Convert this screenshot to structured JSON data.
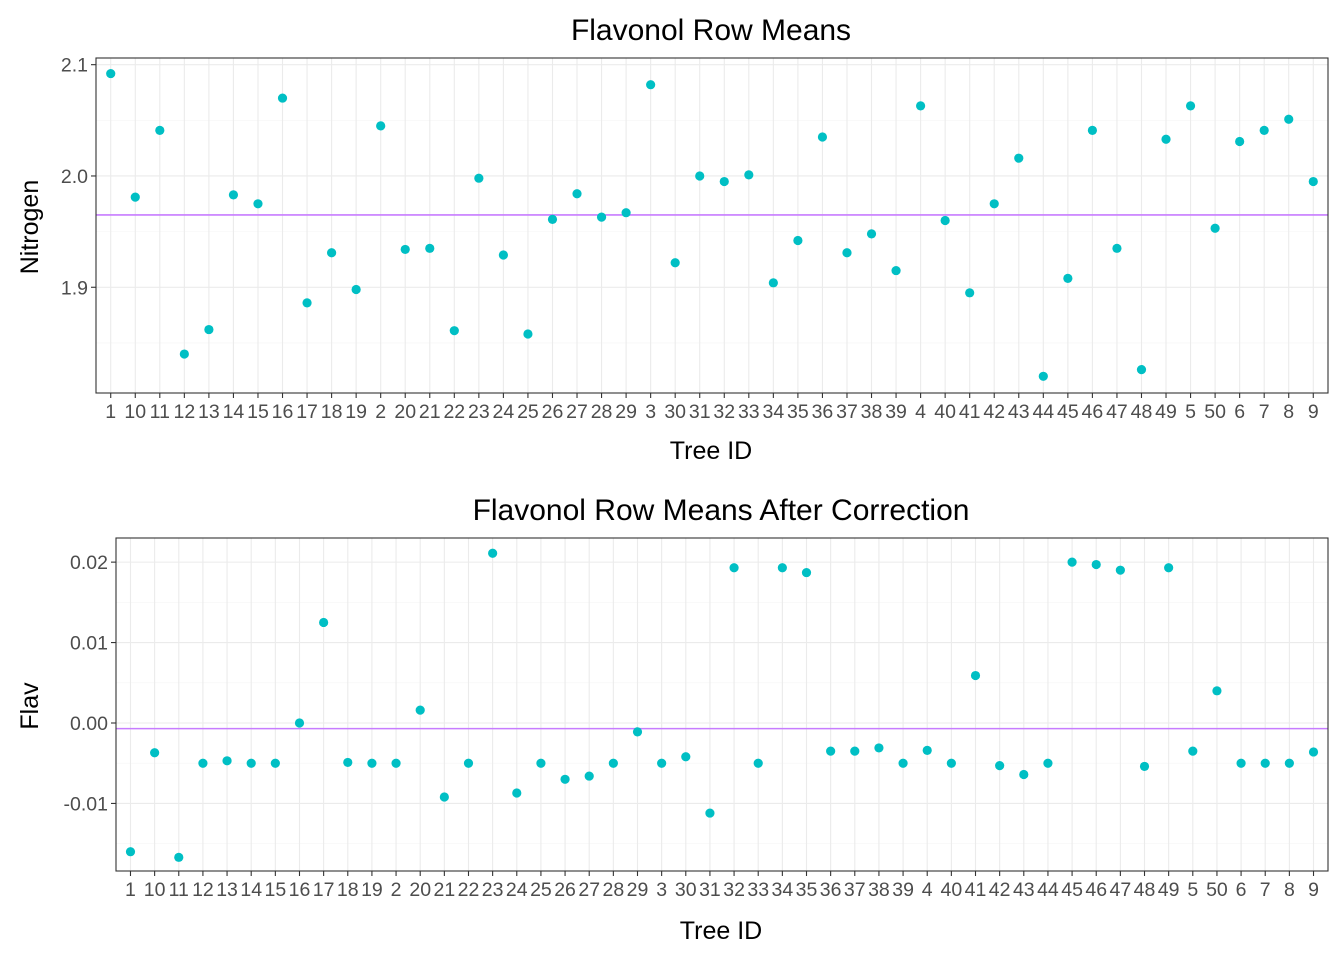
{
  "chart_data": [
    {
      "type": "scatter",
      "title": "Flavonol Row Means",
      "xlabel": "Tree ID",
      "ylabel": "Nitrogen",
      "categories": [
        "1",
        "10",
        "11",
        "12",
        "13",
        "14",
        "15",
        "16",
        "17",
        "18",
        "19",
        "2",
        "20",
        "21",
        "22",
        "23",
        "24",
        "25",
        "26",
        "27",
        "28",
        "29",
        "3",
        "30",
        "31",
        "32",
        "33",
        "34",
        "35",
        "36",
        "37",
        "38",
        "39",
        "4",
        "40",
        "41",
        "42",
        "43",
        "44",
        "45",
        "46",
        "47",
        "48",
        "49",
        "5",
        "50",
        "6",
        "7",
        "8",
        "9"
      ],
      "values": [
        2.092,
        1.981,
        2.041,
        1.84,
        1.862,
        1.983,
        1.975,
        2.07,
        1.886,
        1.931,
        1.898,
        2.045,
        1.934,
        1.935,
        1.861,
        1.998,
        1.929,
        1.858,
        1.961,
        1.984,
        1.963,
        1.967,
        2.082,
        1.922,
        2.0,
        1.995,
        2.001,
        1.904,
        1.942,
        2.035,
        1.931,
        1.948,
        1.915,
        2.063,
        1.96,
        1.895,
        1.975,
        2.016,
        1.82,
        1.908,
        2.041,
        1.935,
        1.826,
        2.033,
        2.063,
        1.953,
        2.031,
        2.041,
        2.051,
        1.995
      ],
      "hline": 1.965,
      "ylim": [
        1.805,
        2.106
      ],
      "yticks": [
        1.9,
        2.0,
        2.1
      ],
      "ytick_labels": [
        "1.9",
        "2.0",
        "2.1"
      ],
      "grid": true,
      "colors": {
        "points": "#00bfc4",
        "hline": "#c77cff"
      }
    },
    {
      "type": "scatter",
      "title": "Flavonol Row Means After Correction",
      "xlabel": "Tree ID",
      "ylabel": "Flav",
      "categories": [
        "1",
        "10",
        "11",
        "12",
        "13",
        "14",
        "15",
        "16",
        "17",
        "18",
        "19",
        "2",
        "20",
        "21",
        "22",
        "23",
        "24",
        "25",
        "26",
        "27",
        "28",
        "29",
        "3",
        "30",
        "31",
        "32",
        "33",
        "34",
        "35",
        "36",
        "37",
        "38",
        "39",
        "4",
        "40",
        "41",
        "42",
        "43",
        "44",
        "45",
        "46",
        "47",
        "48",
        "49",
        "5",
        "50",
        "6",
        "7",
        "8",
        "9"
      ],
      "values": [
        -0.016,
        -0.0037,
        -0.0167,
        -0.005,
        -0.0047,
        -0.005,
        -0.005,
        0.0,
        0.0125,
        -0.0049,
        -0.005,
        -0.005,
        0.0016,
        -0.0092,
        -0.005,
        0.0211,
        -0.0087,
        -0.005,
        -0.007,
        -0.0066,
        -0.005,
        -0.0011,
        -0.005,
        -0.0042,
        -0.0112,
        0.0193,
        -0.005,
        0.0193,
        0.0187,
        -0.0035,
        -0.0035,
        -0.0031,
        -0.005,
        -0.0034,
        -0.005,
        0.0059,
        -0.0053,
        -0.0064,
        -0.005,
        0.02,
        0.0197,
        0.019,
        -0.0054,
        0.0193,
        -0.0035,
        0.004,
        -0.005,
        -0.005,
        -0.005,
        -0.0036
      ],
      "hline": -0.0007,
      "ylim": [
        -0.0184,
        0.023
      ],
      "yticks": [
        -0.01,
        0.0,
        0.01,
        0.02
      ],
      "ytick_labels": [
        "-0.01",
        "0.00",
        "0.01",
        "0.02"
      ],
      "grid": true,
      "colors": {
        "points": "#00bfc4",
        "hline": "#c77cff"
      }
    }
  ]
}
